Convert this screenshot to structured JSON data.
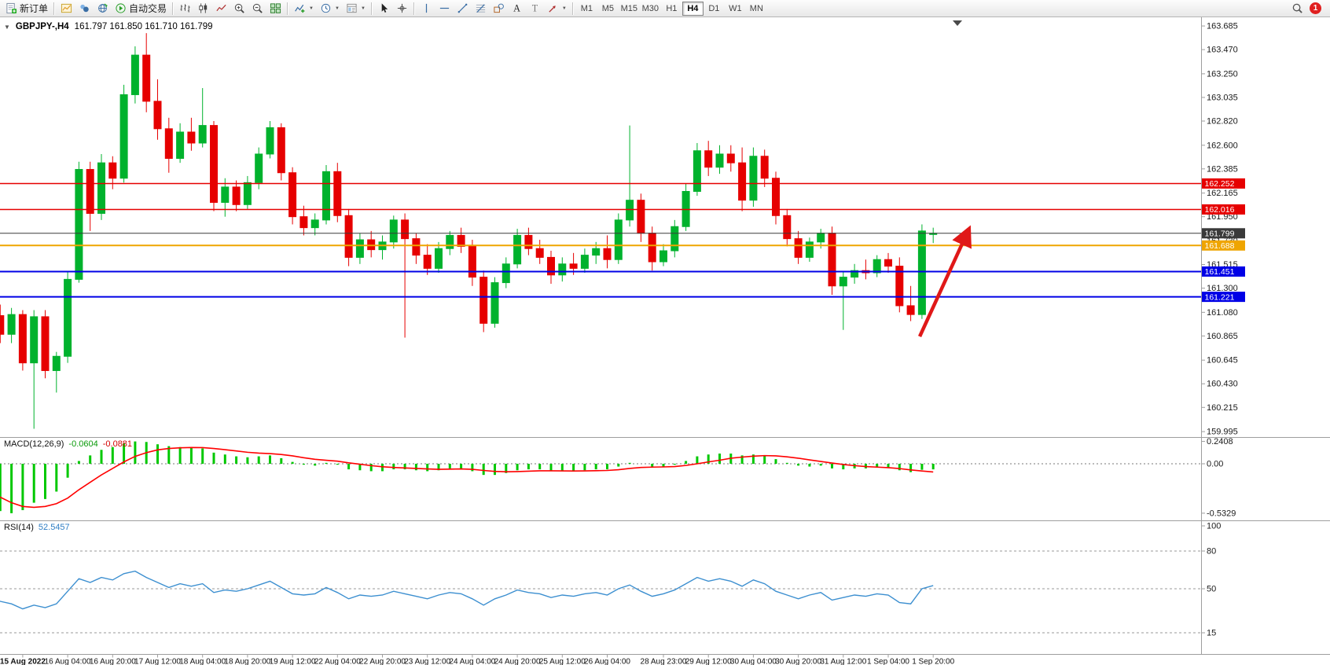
{
  "toolbar": {
    "items": [
      {
        "type": "button",
        "name": "new-order-button",
        "icon": "new-order-icon",
        "label": "新订单"
      },
      {
        "type": "sep"
      },
      {
        "type": "button",
        "name": "charts-button",
        "icon": "chart-window-icon"
      },
      {
        "type": "button",
        "name": "profiles-button",
        "icon": "profiles-icon"
      },
      {
        "type": "button",
        "name": "market-watch-button",
        "icon": "globe-icon"
      },
      {
        "type": "button",
        "name": "auto-trading-button",
        "icon": "autotrade-icon",
        "label": "自动交易"
      },
      {
        "type": "sep"
      },
      {
        "type": "button",
        "name": "bar-chart-button",
        "icon": "bar-chart-icon"
      },
      {
        "type": "button",
        "name": "candle-chart-button",
        "icon": "candle-chart-icon"
      },
      {
        "type": "button",
        "name": "line-chart-button",
        "icon": "line-chart-icon"
      },
      {
        "type": "button",
        "name": "zoom-in-button",
        "icon": "zoom-in-icon"
      },
      {
        "type": "button",
        "name": "zoom-out-button",
        "icon": "zoom-out-icon"
      },
      {
        "type": "button",
        "name": "tile-windows-button",
        "icon": "tile-windows-icon"
      },
      {
        "type": "sep"
      },
      {
        "type": "button",
        "name": "indicators-button",
        "icon": "indicators-icon",
        "dropdown": true
      },
      {
        "type": "button",
        "name": "periods-button",
        "icon": "clock-icon",
        "dropdown": true
      },
      {
        "type": "button",
        "name": "templates-button",
        "icon": "template-icon",
        "dropdown": true
      },
      {
        "type": "sep"
      },
      {
        "type": "button",
        "name": "cursor-button",
        "icon": "cursor-icon"
      },
      {
        "type": "button",
        "name": "crosshair-button",
        "icon": "crosshair-icon"
      },
      {
        "type": "sep"
      },
      {
        "type": "button",
        "name": "vline-button",
        "icon": "vline-icon"
      },
      {
        "type": "button",
        "name": "hline-button",
        "icon": "hline-icon"
      },
      {
        "type": "button",
        "name": "trendline-button",
        "icon": "trendline-icon"
      },
      {
        "type": "button",
        "name": "fibonacci-button",
        "icon": "fibonacci-icon"
      },
      {
        "type": "button",
        "name": "shapes-button",
        "icon": "shapes-icon"
      },
      {
        "type": "button",
        "name": "text-button",
        "icon": "text-icon"
      },
      {
        "type": "button",
        "name": "label-button",
        "icon": "label-icon"
      },
      {
        "type": "button",
        "name": "arrows-button",
        "icon": "arrow-icon",
        "dropdown": true
      },
      {
        "type": "sep"
      },
      {
        "type": "timeframes"
      },
      {
        "type": "spacer"
      },
      {
        "type": "button",
        "name": "search-button",
        "icon": "search-icon"
      },
      {
        "type": "badge"
      }
    ],
    "glyphs": {
      "text": "A",
      "label": "T"
    },
    "timeframes": [
      "M1",
      "M5",
      "M15",
      "M30",
      "H1",
      "H4",
      "D1",
      "W1",
      "MN"
    ],
    "active_timeframe": "H4",
    "badge_count": "1"
  },
  "chart": {
    "title": "GBPJPY-,H4",
    "ohlc": "161.797 161.850 161.710 161.799"
  },
  "indicators": {
    "macd": {
      "name": "MACD(12,26,9)",
      "value_main": "-0.0604",
      "value_signal": "-0.0881",
      "scale": [
        "0.2408",
        "0.00",
        "-0.5329"
      ]
    },
    "rsi": {
      "name": "RSI(14)",
      "value": "52.5457",
      "scale_labels": [
        "100",
        "80",
        "50",
        "15"
      ]
    }
  },
  "colors": {
    "up": "#00b22d",
    "down": "#e60000",
    "macd_hist": "#00c800",
    "macd_signal": "#ff0000",
    "rsi": "#3c8fd0",
    "arrow": "#e01818"
  },
  "chart_data": {
    "type": "candlestick",
    "symbol": "GBPJPY-",
    "timeframe": "H4",
    "price_range_shown": [
      159.995,
      163.685
    ],
    "price_ticks": [
      "163.685",
      "163.470",
      "163.250",
      "163.035",
      "162.820",
      "162.600",
      "162.385",
      "162.165",
      "161.950",
      "161.730",
      "161.515",
      "161.300",
      "161.080",
      "160.865",
      "160.645",
      "160.430",
      "160.215",
      "159.995"
    ],
    "hlines": [
      {
        "price": 162.252,
        "label": "162.252",
        "color": "#e60000",
        "width": 1.5
      },
      {
        "price": 162.016,
        "label": "162.016",
        "color": "#e60000",
        "width": 1.5
      },
      {
        "price": 161.799,
        "label": "161.799",
        "color": "#3a3a3a",
        "width": 1
      },
      {
        "price": 161.688,
        "label": "161.688",
        "color": "#efa500",
        "width": 2
      },
      {
        "price": 161.451,
        "label": "161.451",
        "color": "#0000e6",
        "width": 2
      },
      {
        "price": 161.221,
        "label": "161.221",
        "color": "#0000e6",
        "width": 2
      }
    ],
    "candles": [
      [
        161.3,
        161.35,
        160.95,
        161.05
      ],
      [
        161.05,
        161.15,
        160.8,
        160.88
      ],
      [
        160.88,
        161.12,
        160.8,
        161.06
      ],
      [
        161.06,
        161.1,
        160.55,
        160.62
      ],
      [
        160.62,
        161.1,
        160.02,
        161.04
      ],
      [
        161.04,
        161.1,
        160.48,
        160.55
      ],
      [
        160.55,
        160.72,
        160.35,
        160.68
      ],
      [
        160.68,
        161.45,
        160.62,
        161.38
      ],
      [
        161.38,
        162.45,
        161.35,
        162.38
      ],
      [
        162.38,
        162.45,
        161.82,
        161.98
      ],
      [
        161.98,
        162.52,
        161.92,
        162.44
      ],
      [
        162.44,
        162.5,
        162.2,
        162.3
      ],
      [
        162.3,
        163.15,
        162.26,
        163.06
      ],
      [
        163.06,
        163.5,
        162.98,
        163.42
      ],
      [
        163.42,
        163.62,
        162.9,
        163.0
      ],
      [
        163.0,
        163.2,
        162.65,
        162.75
      ],
      [
        162.75,
        162.85,
        162.35,
        162.48
      ],
      [
        162.48,
        162.8,
        162.44,
        162.72
      ],
      [
        162.72,
        162.85,
        162.55,
        162.62
      ],
      [
        162.62,
        163.12,
        162.58,
        162.78
      ],
      [
        162.78,
        162.82,
        162.0,
        162.08
      ],
      [
        162.08,
        162.3,
        161.95,
        162.22
      ],
      [
        162.22,
        162.28,
        162.0,
        162.06
      ],
      [
        162.06,
        162.32,
        162.02,
        162.26
      ],
      [
        162.26,
        162.58,
        162.2,
        162.52
      ],
      [
        162.52,
        162.82,
        162.48,
        162.76
      ],
      [
        162.76,
        162.8,
        162.28,
        162.35
      ],
      [
        162.35,
        162.4,
        161.88,
        161.95
      ],
      [
        161.95,
        162.05,
        161.78,
        161.85
      ],
      [
        161.85,
        161.98,
        161.78,
        161.92
      ],
      [
        161.92,
        162.42,
        161.88,
        162.36
      ],
      [
        162.36,
        162.44,
        161.9,
        161.96
      ],
      [
        161.96,
        162.02,
        161.5,
        161.58
      ],
      [
        161.58,
        161.8,
        161.52,
        161.74
      ],
      [
        161.74,
        161.82,
        161.58,
        161.65
      ],
      [
        161.65,
        161.78,
        161.56,
        161.72
      ],
      [
        161.72,
        161.96,
        161.66,
        161.92
      ],
      [
        161.92,
        161.98,
        160.85,
        161.75
      ],
      [
        161.75,
        161.8,
        161.52,
        161.6
      ],
      [
        161.6,
        161.7,
        161.42,
        161.48
      ],
      [
        161.48,
        161.72,
        161.44,
        161.66
      ],
      [
        161.66,
        161.82,
        161.6,
        161.78
      ],
      [
        161.78,
        161.85,
        161.62,
        161.68
      ],
      [
        161.68,
        161.74,
        161.32,
        161.4
      ],
      [
        161.4,
        161.46,
        160.9,
        160.98
      ],
      [
        160.98,
        161.4,
        160.94,
        161.35
      ],
      [
        161.35,
        161.58,
        161.3,
        161.52
      ],
      [
        161.52,
        161.84,
        161.48,
        161.78
      ],
      [
        161.78,
        161.85,
        161.6,
        161.66
      ],
      [
        161.66,
        161.74,
        161.52,
        161.58
      ],
      [
        161.58,
        161.64,
        161.34,
        161.42
      ],
      [
        161.42,
        161.58,
        161.36,
        161.52
      ],
      [
        161.52,
        161.62,
        161.42,
        161.48
      ],
      [
        161.48,
        161.66,
        161.44,
        161.6
      ],
      [
        161.6,
        161.72,
        161.52,
        161.66
      ],
      [
        161.66,
        161.78,
        161.48,
        161.56
      ],
      [
        161.56,
        161.98,
        161.52,
        161.92
      ],
      [
        161.92,
        162.78,
        161.86,
        162.1
      ],
      [
        162.1,
        162.16,
        161.72,
        161.8
      ],
      [
        161.8,
        161.86,
        161.46,
        161.54
      ],
      [
        161.54,
        161.7,
        161.5,
        161.64
      ],
      [
        161.64,
        161.92,
        161.58,
        161.86
      ],
      [
        161.86,
        162.25,
        161.82,
        162.18
      ],
      [
        162.18,
        162.62,
        162.14,
        162.55
      ],
      [
        162.55,
        162.64,
        162.32,
        162.4
      ],
      [
        162.4,
        162.6,
        162.34,
        162.52
      ],
      [
        162.52,
        162.6,
        162.36,
        162.44
      ],
      [
        162.44,
        162.58,
        162.0,
        162.1
      ],
      [
        162.1,
        162.58,
        162.04,
        162.5
      ],
      [
        162.5,
        162.56,
        162.22,
        162.3
      ],
      [
        162.3,
        162.36,
        161.88,
        161.96
      ],
      [
        161.96,
        162.02,
        161.68,
        161.75
      ],
      [
        161.75,
        161.82,
        161.52,
        161.58
      ],
      [
        161.58,
        161.76,
        161.54,
        161.72
      ],
      [
        161.72,
        161.84,
        161.66,
        161.8
      ],
      [
        161.8,
        161.86,
        161.24,
        161.32
      ],
      [
        161.32,
        161.45,
        160.92,
        161.4
      ],
      [
        161.4,
        161.52,
        161.34,
        161.46
      ],
      [
        161.46,
        161.56,
        161.38,
        161.44
      ],
      [
        161.44,
        161.6,
        161.4,
        161.56
      ],
      [
        161.56,
        161.62,
        161.44,
        161.5
      ],
      [
        161.5,
        161.58,
        161.08,
        161.14
      ],
      [
        161.14,
        161.32,
        161.0,
        161.06
      ],
      [
        161.06,
        161.88,
        161.02,
        161.82
      ],
      [
        161.797,
        161.85,
        161.71,
        161.799
      ]
    ],
    "time_labels": [
      [
        "15 Aug 2022",
        3
      ],
      [
        "16 Aug 04:00",
        7
      ],
      [
        "16 Aug 20:00",
        11
      ],
      [
        "17 Aug 12:00",
        15
      ],
      [
        "18 Aug 04:00",
        19
      ],
      [
        "18 Aug 20:00",
        23
      ],
      [
        "19 Aug 12:00",
        27
      ],
      [
        "22 Aug 04:00",
        31
      ],
      [
        "22 Aug 20:00",
        35
      ],
      [
        "23 Aug 12:00",
        39
      ],
      [
        "24 Aug 04:00",
        43
      ],
      [
        "24 Aug 20:00",
        47
      ],
      [
        "25 Aug 12:00",
        51
      ],
      [
        "26 Aug 04:00",
        55
      ],
      [
        "28 Aug 23:00",
        60
      ],
      [
        "29 Aug 12:00",
        64
      ],
      [
        "30 Aug 04:00",
        68
      ],
      [
        "30 Aug 20:00",
        72
      ],
      [
        "31 Aug 12:00",
        76
      ],
      [
        "1 Sep 04:00",
        80
      ],
      [
        "1 Sep 20:00",
        84
      ]
    ],
    "indicators": {
      "macd": {
        "scale": [
          0.2408,
          0.0,
          -0.5329
        ],
        "hist": [
          -0.46,
          -0.51,
          -0.533,
          -0.5,
          -0.42,
          -0.38,
          -0.3,
          -0.15,
          0.03,
          0.09,
          0.15,
          0.18,
          0.22,
          0.2408,
          0.235,
          0.21,
          0.19,
          0.18,
          0.17,
          0.165,
          0.12,
          0.1,
          0.08,
          0.07,
          0.08,
          0.09,
          0.06,
          0.02,
          -0.01,
          -0.02,
          0.01,
          -0.01,
          -0.06,
          -0.07,
          -0.08,
          -0.08,
          -0.06,
          -0.06,
          -0.07,
          -0.08,
          -0.07,
          -0.05,
          -0.05,
          -0.08,
          -0.12,
          -0.12,
          -0.1,
          -0.07,
          -0.06,
          -0.06,
          -0.08,
          -0.08,
          -0.08,
          -0.07,
          -0.06,
          -0.06,
          -0.03,
          0.01,
          0.0,
          -0.03,
          -0.03,
          -0.01,
          0.03,
          0.08,
          0.1,
          0.11,
          0.11,
          0.09,
          0.1,
          0.09,
          0.05,
          0.01,
          -0.02,
          -0.03,
          -0.02,
          -0.05,
          -0.06,
          -0.05,
          -0.05,
          -0.04,
          -0.04,
          -0.07,
          -0.09,
          -0.065,
          -0.0604
        ],
        "signal": [
          -0.3,
          -0.36,
          -0.42,
          -0.46,
          -0.47,
          -0.46,
          -0.43,
          -0.37,
          -0.28,
          -0.2,
          -0.12,
          -0.05,
          0.02,
          0.08,
          0.12,
          0.15,
          0.165,
          0.172,
          0.175,
          0.174,
          0.165,
          0.152,
          0.138,
          0.124,
          0.115,
          0.11,
          0.1,
          0.085,
          0.065,
          0.048,
          0.038,
          0.028,
          0.01,
          -0.005,
          -0.02,
          -0.032,
          -0.04,
          -0.045,
          -0.05,
          -0.056,
          -0.06,
          -0.058,
          -0.056,
          -0.06,
          -0.072,
          -0.082,
          -0.086,
          -0.084,
          -0.08,
          -0.076,
          -0.076,
          -0.077,
          -0.078,
          -0.077,
          -0.075,
          -0.072,
          -0.064,
          -0.05,
          -0.04,
          -0.036,
          -0.034,
          -0.03,
          -0.018,
          0.0,
          0.02,
          0.038,
          0.06,
          0.072,
          0.082,
          0.088,
          0.085,
          0.075,
          0.06,
          0.042,
          0.025,
          0.008,
          -0.008,
          -0.02,
          -0.03,
          -0.036,
          -0.042,
          -0.052,
          -0.066,
          -0.078,
          -0.0881
        ]
      },
      "rsi": {
        "levels": [
          80,
          50,
          15
        ],
        "values": [
          44,
          40,
          38,
          34,
          37,
          35,
          38,
          48,
          58,
          55,
          59,
          57,
          62,
          64,
          59,
          55,
          51,
          54,
          52,
          54,
          47,
          49,
          48,
          50,
          53,
          56,
          51,
          46,
          45,
          46,
          51,
          47,
          42,
          45,
          44,
          45,
          48,
          46,
          44,
          42,
          45,
          47,
          46,
          42,
          37,
          42,
          45,
          49,
          47,
          46,
          43,
          45,
          44,
          46,
          47,
          45,
          50,
          53,
          48,
          44,
          46,
          49,
          54,
          59,
          56,
          58,
          56,
          52,
          57,
          54,
          48,
          45,
          42,
          45,
          47,
          41,
          43,
          45,
          44,
          46,
          45,
          39,
          38,
          50,
          52.55
        ]
      }
    },
    "arrow": {
      "from": [
        82.8,
        160.86
      ],
      "to": [
        87.1,
        161.82
      ]
    }
  }
}
